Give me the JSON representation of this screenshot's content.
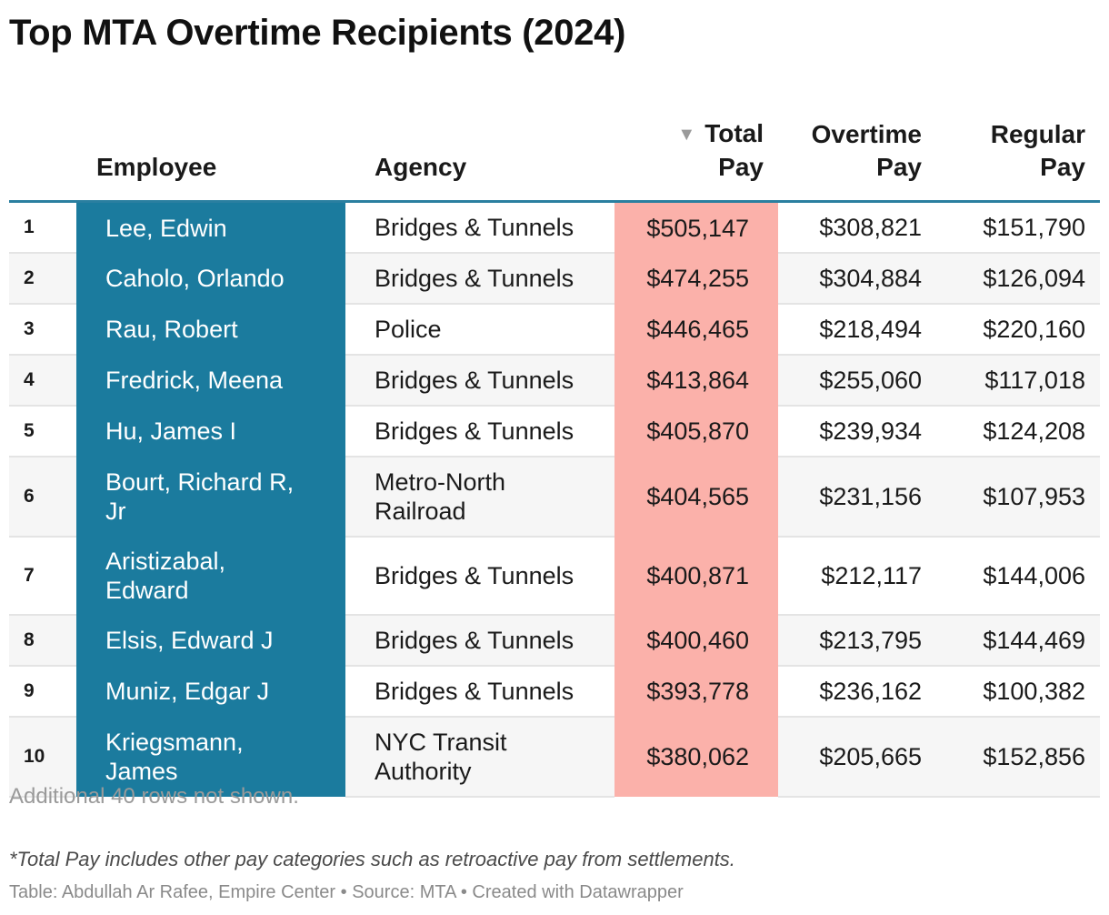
{
  "title": "Top MTA Overtime Recipients (2024)",
  "chart_data": {
    "type": "table",
    "title": "Top MTA Overtime Recipients (2024)",
    "columns": {
      "rank": "",
      "employee": "Employee",
      "agency": "Agency",
      "total_pay": "Total Pay",
      "overtime_pay": "Overtime Pay",
      "regular_pay": "Regular Pay"
    },
    "sort_indicator": "▼",
    "sorted_by": "Total Pay",
    "rows": [
      {
        "rank": "1",
        "employee": "Lee, Edwin",
        "agency": "Bridges & Tunnels",
        "total_pay": "$505,147",
        "overtime_pay": "$308,821",
        "regular_pay": "$151,790"
      },
      {
        "rank": "2",
        "employee": "Caholo, Orlando",
        "agency": "Bridges & Tunnels",
        "total_pay": "$474,255",
        "overtime_pay": "$304,884",
        "regular_pay": "$126,094"
      },
      {
        "rank": "3",
        "employee": "Rau, Robert",
        "agency": "Police",
        "total_pay": "$446,465",
        "overtime_pay": "$218,494",
        "regular_pay": "$220,160"
      },
      {
        "rank": "4",
        "employee": "Fredrick, Meena",
        "agency": "Bridges & Tunnels",
        "total_pay": "$413,864",
        "overtime_pay": "$255,060",
        "regular_pay": "$117,018"
      },
      {
        "rank": "5",
        "employee": "Hu, James I",
        "agency": "Bridges & Tunnels",
        "total_pay": "$405,870",
        "overtime_pay": "$239,934",
        "regular_pay": "$124,208"
      },
      {
        "rank": "6",
        "employee": "Bourt, Richard R, Jr",
        "agency": "Metro-North Railroad",
        "total_pay": "$404,565",
        "overtime_pay": "$231,156",
        "regular_pay": "$107,953"
      },
      {
        "rank": "7",
        "employee": "Aristizabal, Edward",
        "agency": "Bridges & Tunnels",
        "total_pay": "$400,871",
        "overtime_pay": "$212,117",
        "regular_pay": "$144,006"
      },
      {
        "rank": "8",
        "employee": "Elsis, Edward J",
        "agency": "Bridges & Tunnels",
        "total_pay": "$400,460",
        "overtime_pay": "$213,795",
        "regular_pay": "$144,469"
      },
      {
        "rank": "9",
        "employee": "Muniz, Edgar J",
        "agency": "Bridges & Tunnels",
        "total_pay": "$393,778",
        "overtime_pay": "$236,162",
        "regular_pay": "$100,382"
      },
      {
        "rank": "10",
        "employee": "Kriegsmann, James",
        "agency": "NYC Transit Authority",
        "total_pay": "$380,062",
        "overtime_pay": "$205,665",
        "regular_pay": "$152,856"
      }
    ]
  },
  "footer": {
    "more_rows": "Additional 40 rows not shown.",
    "note": "*Total Pay includes other pay categories such as retroactive pay from settlements.",
    "credits": "Table: Abdullah Ar Rafee, Empire Center • Source: MTA • Created with Datawrapper"
  },
  "colors": {
    "employee_highlight": "#1b7b9e",
    "total_highlight": "#fbb1aa",
    "header_rule": "#2a7fa0"
  }
}
